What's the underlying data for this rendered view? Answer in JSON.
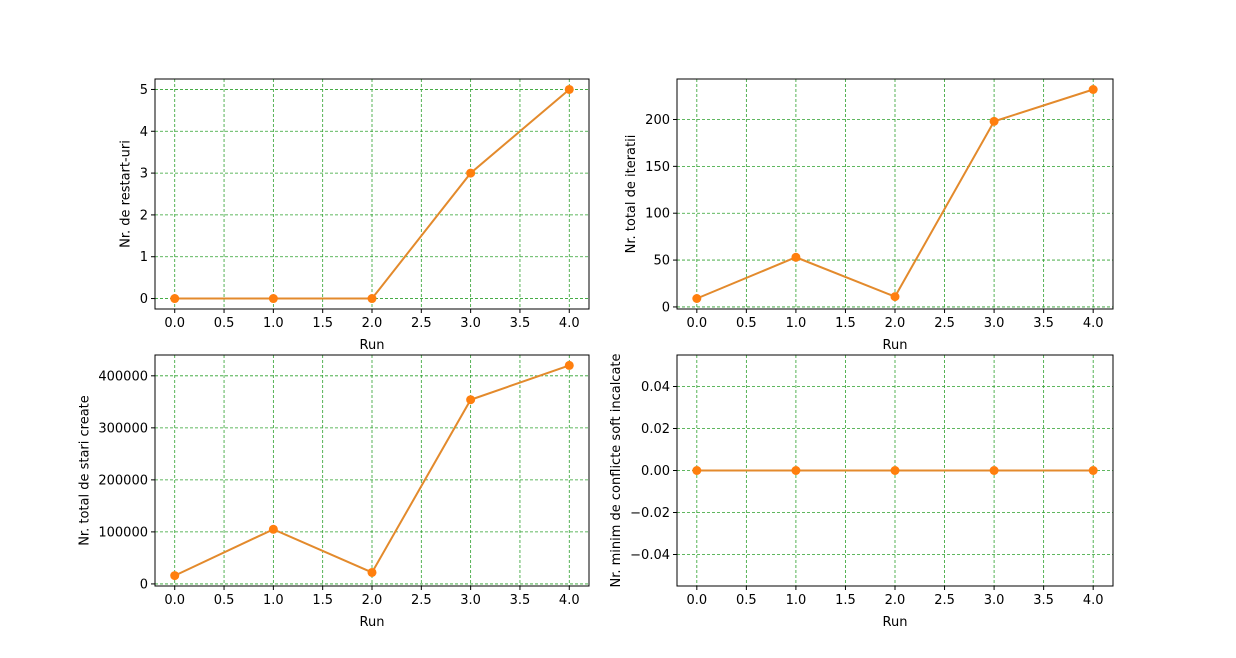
{
  "colors": {
    "line": "#e38a2c",
    "marker": "#ff7f0e",
    "grid": "#2ca02c",
    "frame": "#000000"
  },
  "chart_data": [
    {
      "type": "line",
      "xlabel": "Run",
      "ylabel": "Nr. de restart-uri",
      "x": [
        0,
        1,
        2,
        3,
        4
      ],
      "series": [
        {
          "values": [
            0,
            0,
            0,
            3,
            5
          ]
        }
      ],
      "xlim": [
        -0.2,
        4.2
      ],
      "ylim": [
        -0.25,
        5.25
      ],
      "xticks": [
        0.0,
        0.5,
        1.0,
        1.5,
        2.0,
        2.5,
        3.0,
        3.5,
        4.0
      ],
      "xtick_labels": [
        "0.0",
        "0.5",
        "1.0",
        "1.5",
        "2.0",
        "2.5",
        "3.0",
        "3.5",
        "4.0"
      ],
      "yticks": [
        0,
        1,
        2,
        3,
        4,
        5
      ],
      "ytick_labels": [
        "0",
        "1",
        "2",
        "3",
        "4",
        "5"
      ],
      "grid": true
    },
    {
      "type": "line",
      "xlabel": "Run",
      "ylabel": "Nr. total de iteratii",
      "x": [
        0,
        1,
        2,
        3,
        4
      ],
      "series": [
        {
          "values": [
            9,
            53,
            11,
            198,
            232
          ]
        }
      ],
      "xlim": [
        -0.2,
        4.2
      ],
      "ylim": [
        -2.2,
        243.2
      ],
      "xticks": [
        0.0,
        0.5,
        1.0,
        1.5,
        2.0,
        2.5,
        3.0,
        3.5,
        4.0
      ],
      "xtick_labels": [
        "0.0",
        "0.5",
        "1.0",
        "1.5",
        "2.0",
        "2.5",
        "3.0",
        "3.5",
        "4.0"
      ],
      "yticks": [
        0,
        50,
        100,
        150,
        200
      ],
      "ytick_labels": [
        "0",
        "50",
        "100",
        "150",
        "200"
      ],
      "grid": true
    },
    {
      "type": "line",
      "xlabel": "Run",
      "ylabel": "Nr. total de stari create",
      "x": [
        0,
        1,
        2,
        3,
        4
      ],
      "series": [
        {
          "values": [
            16000,
            105000,
            22000,
            354000,
            420000
          ]
        }
      ],
      "xlim": [
        -0.2,
        4.2
      ],
      "ylim": [
        -4000,
        440000
      ],
      "xticks": [
        0.0,
        0.5,
        1.0,
        1.5,
        2.0,
        2.5,
        3.0,
        3.5,
        4.0
      ],
      "xtick_labels": [
        "0.0",
        "0.5",
        "1.0",
        "1.5",
        "2.0",
        "2.5",
        "3.0",
        "3.5",
        "4.0"
      ],
      "yticks": [
        0,
        100000,
        200000,
        300000,
        400000
      ],
      "ytick_labels": [
        "0",
        "100000",
        "200000",
        "300000",
        "400000"
      ],
      "grid": true
    },
    {
      "type": "line",
      "xlabel": "Run",
      "ylabel": "Nr. minim de conflicte soft incalcate",
      "x": [
        0,
        1,
        2,
        3,
        4
      ],
      "series": [
        {
          "values": [
            0,
            0,
            0,
            0,
            0
          ]
        }
      ],
      "xlim": [
        -0.2,
        4.2
      ],
      "ylim": [
        -0.055,
        0.055
      ],
      "xticks": [
        0.0,
        0.5,
        1.0,
        1.5,
        2.0,
        2.5,
        3.0,
        3.5,
        4.0
      ],
      "xtick_labels": [
        "0.0",
        "0.5",
        "1.0",
        "1.5",
        "2.0",
        "2.5",
        "3.0",
        "3.5",
        "4.0"
      ],
      "yticks": [
        -0.04,
        -0.02,
        0.0,
        0.02,
        0.04
      ],
      "ytick_labels": [
        "−0.04",
        "−0.02",
        "0.00",
        "0.02",
        "0.04"
      ],
      "grid": true
    }
  ]
}
